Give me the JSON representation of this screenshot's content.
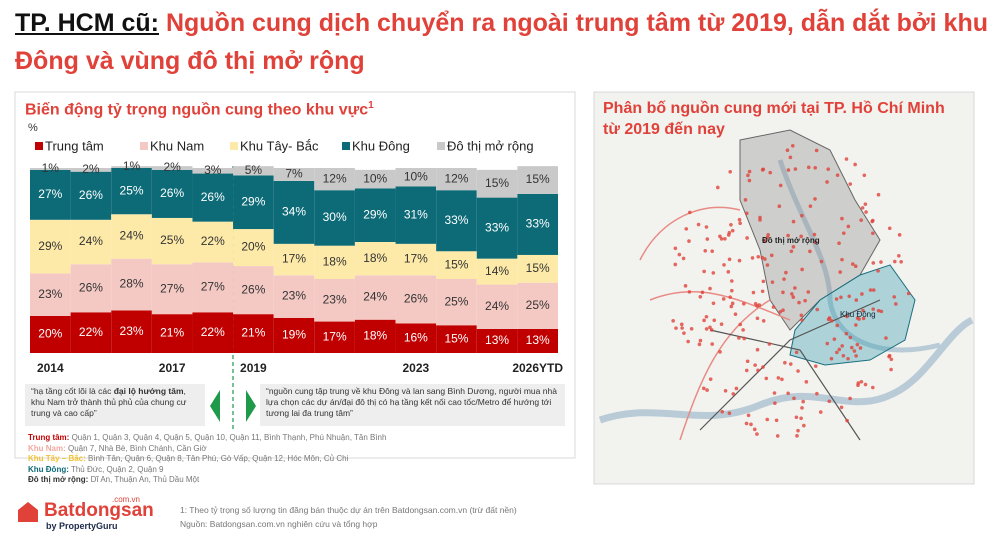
{
  "header": {
    "lead": "TP. HCM cũ:",
    "title": " Nguồn cung dịch chuyển ra ngoài trung tâm từ 2019, dẫn dắt bởi khu Đông và vùng đô thị mở rộng"
  },
  "chart_data": {
    "type": "stacked_bar",
    "title": "Biến động tỷ trọng nguồn cung theo khu vực",
    "title_note": "1",
    "y_label": "%",
    "categories": [
      "2014",
      null,
      null,
      "2017",
      null,
      "2019",
      null,
      null,
      null,
      "2023",
      null,
      null,
      "2026YTD"
    ],
    "ylim": [
      0,
      100
    ],
    "series": [
      {
        "name": "Trung tâm",
        "color": "#c00000",
        "values": [
          20,
          22,
          23,
          21,
          22,
          21,
          19,
          17,
          18,
          16,
          15,
          13,
          13
        ],
        "value_labels": [
          "20%",
          "22%",
          "23%",
          "21%",
          "22%",
          "21%",
          "19%",
          "17%",
          "18%",
          "16%",
          "15%",
          "13%",
          "13%"
        ]
      },
      {
        "name": "Khu Nam",
        "color": "#f4c9c4",
        "values": [
          23,
          26,
          28,
          27,
          27,
          26,
          23,
          23,
          24,
          26,
          25,
          24,
          25
        ],
        "value_labels": [
          "23%",
          "26%",
          "28%",
          "27%",
          "27%",
          "26%",
          "23%",
          "23%",
          "24%",
          "26%",
          "25%",
          "24%",
          "25%"
        ]
      },
      {
        "name": "Khu Tây- Bắc",
        "color": "#fdeaa8",
        "values": [
          29,
          24,
          24,
          25,
          22,
          20,
          17,
          18,
          18,
          17,
          15,
          14,
          15
        ],
        "value_labels": [
          "29%",
          "24%",
          "24%",
          "25%",
          "22%",
          "20%",
          "17%",
          "18%",
          "18%",
          "17%",
          "15%",
          "14%",
          "15%"
        ]
      },
      {
        "name": "Khu Đông",
        "color": "#0d6b78",
        "values": [
          27,
          26,
          25,
          26,
          26,
          29,
          34,
          30,
          29,
          31,
          33,
          33,
          33
        ],
        "value_labels": [
          "27%",
          "26%",
          "25%",
          "26%",
          "26%",
          "29%",
          "34%",
          "30%",
          "29%",
          "31%",
          "33%",
          "33%",
          "33%"
        ]
      },
      {
        "name": "Đô thị mở rộng",
        "color": "#c9c9c9",
        "values": [
          1,
          2,
          1,
          2,
          3,
          5,
          7,
          12,
          10,
          10,
          12,
          15,
          15
        ],
        "value_labels": [
          "1%",
          "2%",
          "1%",
          "2%",
          "3%",
          "5%",
          "7%",
          "12%",
          "10%",
          "10%",
          "12%",
          "15%",
          "15%"
        ]
      }
    ],
    "annotations": [
      {
        "parts": [
          "“hạ tầng cốt lõi là các ",
          "đại lộ hướng tâm",
          ", khu Nam trở thành thủ phủ của chung cư trung và cao cấp”"
        ]
      },
      {
        "parts": [
          "“nguồn cung tập trung về khu Đông và lan sang Bình Dương, người mua nhà lựa chọn các dự án/đại đô thị có hạ tầng kết nối cao tốc/Metro để hướng tới tương lai đa trung tâm”"
        ]
      }
    ]
  },
  "region_notes": [
    {
      "name": "Trung tâm:",
      "color": "#c00000",
      "text": " Quận 1, Quận 3, Quận 4, Quận 5, Quận 10, Quận 11, Bình Thạnh, Phú Nhuận, Tân Bình"
    },
    {
      "name": "Khu Nam:",
      "color": "#f0a9a1",
      "text": " Quận 7, Nhà Bè, Bình Chánh, Cần Giờ"
    },
    {
      "name": "Khu Tây – Bắc:",
      "color": "#f2c230",
      "text": " Bình Tân, Quận 6, Quận 8, Tân Phú, Gò Vấp, Quận 12, Hóc Môn, Củ Chi"
    },
    {
      "name": "Khu Đông:",
      "color": "#0d6b78",
      "text": " Thủ Đức, Quận 2, Quận 9"
    },
    {
      "name": "Đô thị mở rộng:",
      "color": "#333333",
      "text": " Dĩ An, Thuận An, Thủ Dầu Một"
    }
  ],
  "map": {
    "title": "Phân bố nguồn cung mới tại TP. Hồ Chí Minh từ 2019 đến nay",
    "labels": [
      "Đô thị mở rộng",
      "Khu Đông"
    ]
  },
  "footer": {
    "note": "1: Theo tỷ trọng số lượng tin đăng bán thuộc dự án trên Batdongsan.com.vn (trừ đất nền)",
    "source": "Nguồn: Batdongsan.com.vn nghiên cứu và tổng hợp",
    "logo": "Batdongsan",
    "logo_domain": ".com.vn",
    "logo_by": "by PropertyGuru"
  }
}
